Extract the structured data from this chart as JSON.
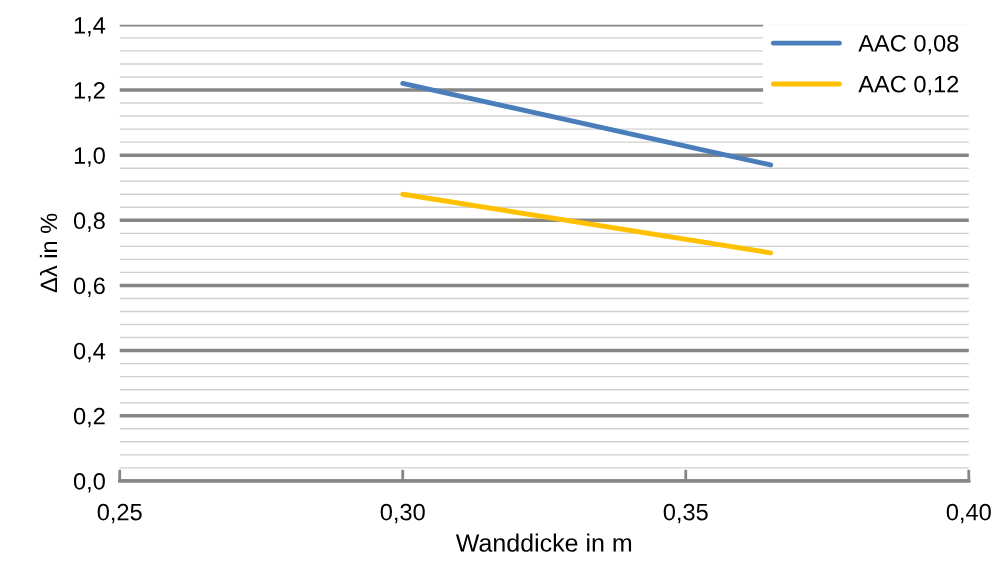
{
  "chart_data": {
    "type": "line",
    "xlabel": "Wanddicke in m",
    "ylabel": "Δλ in %",
    "series": [
      {
        "name": "AAC 0,08",
        "color": "#4a7ebb",
        "values": [
          1.22,
          0.97
        ]
      },
      {
        "name": "AAC 0,12",
        "color": "#ffc000",
        "values": [
          0.88,
          0.7
        ]
      }
    ],
    "x": [
      0.3,
      0.365
    ],
    "xlim": [
      0.25,
      0.4
    ],
    "xticks": [
      {
        "value": 0.25,
        "label": "0,25"
      },
      {
        "value": 0.3,
        "label": "0,30"
      },
      {
        "value": 0.35,
        "label": "0,35"
      },
      {
        "value": 0.4,
        "label": "0,40"
      }
    ],
    "ylim": [
      0,
      1.4
    ],
    "yticks": [
      {
        "value": 0,
        "label": "0,0"
      },
      {
        "value": 0.04,
        "label": null
      },
      {
        "value": 0.08,
        "label": null
      },
      {
        "value": 0.12,
        "label": null
      },
      {
        "value": 0.16,
        "label": null
      },
      {
        "value": 0.2,
        "label": "0,2"
      },
      {
        "value": 0.24,
        "label": null
      },
      {
        "value": 0.28,
        "label": null
      },
      {
        "value": 0.32,
        "label": null
      },
      {
        "value": 0.36,
        "label": null
      },
      {
        "value": 0.4,
        "label": "0,4"
      },
      {
        "value": 0.44,
        "label": null
      },
      {
        "value": 0.48,
        "label": null
      },
      {
        "value": 0.52,
        "label": null
      },
      {
        "value": 0.56,
        "label": null
      },
      {
        "value": 0.6,
        "label": "0,6"
      },
      {
        "value": 0.64,
        "label": null
      },
      {
        "value": 0.68,
        "label": null
      },
      {
        "value": 0.72,
        "label": null
      },
      {
        "value": 0.76,
        "label": null
      },
      {
        "value": 0.8,
        "label": "0,8"
      },
      {
        "value": 0.84,
        "label": null
      },
      {
        "value": 0.88,
        "label": null
      },
      {
        "value": 0.92,
        "label": null
      },
      {
        "value": 0.96,
        "label": null
      },
      {
        "value": 1.0,
        "label": "1,0"
      },
      {
        "value": 1.04,
        "label": null
      },
      {
        "value": 1.08,
        "label": null
      },
      {
        "value": 1.12,
        "label": null
      },
      {
        "value": 1.16,
        "label": null
      },
      {
        "value": 1.2,
        "label": "1,2"
      },
      {
        "value": 1.24,
        "label": null
      },
      {
        "value": 1.28,
        "label": null
      },
      {
        "value": 1.32,
        "label": null
      },
      {
        "value": 1.36,
        "label": null
      },
      {
        "value": 1.4,
        "label": "1,4"
      }
    ],
    "grid": "y",
    "legend": "top right",
    "marker": "none",
    "line_style": "solid"
  }
}
